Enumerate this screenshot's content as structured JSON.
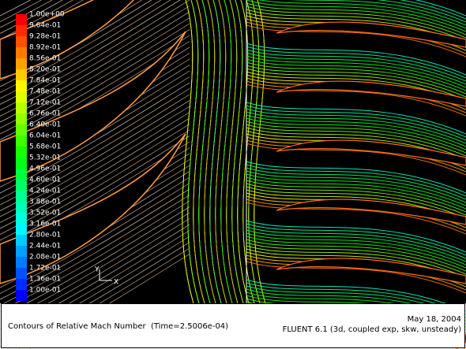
{
  "colorbar": {
    "labels": [
      "1.00e+00",
      "9.64e-01",
      "9.28e-01",
      "8.92e-01",
      "8.56e-01",
      "8.20e-01",
      "7.84e-01",
      "7.48e-01",
      "7.12e-01",
      "6.76e-01",
      "6.40e-01",
      "6.04e-01",
      "5.68e-01",
      "5.32e-01",
      "4.96e-01",
      "4.60e-01",
      "4.24e-01",
      "3.88e-01",
      "3.52e-01",
      "3.16e-01",
      "2.80e-01",
      "2.44e-01",
      "2.08e-01",
      "1.72e-01",
      "1.36e-01",
      "1.00e-01"
    ]
  },
  "axes": {
    "y": "Y",
    "x": "X"
  },
  "footer": {
    "title": "Contours of Relative Mach Number  (Time=2.5006e-04)",
    "date": "May 18, 2004",
    "solver": "FLUENT 6.1 (3d, coupled exp, skw, unsteady)"
  }
}
